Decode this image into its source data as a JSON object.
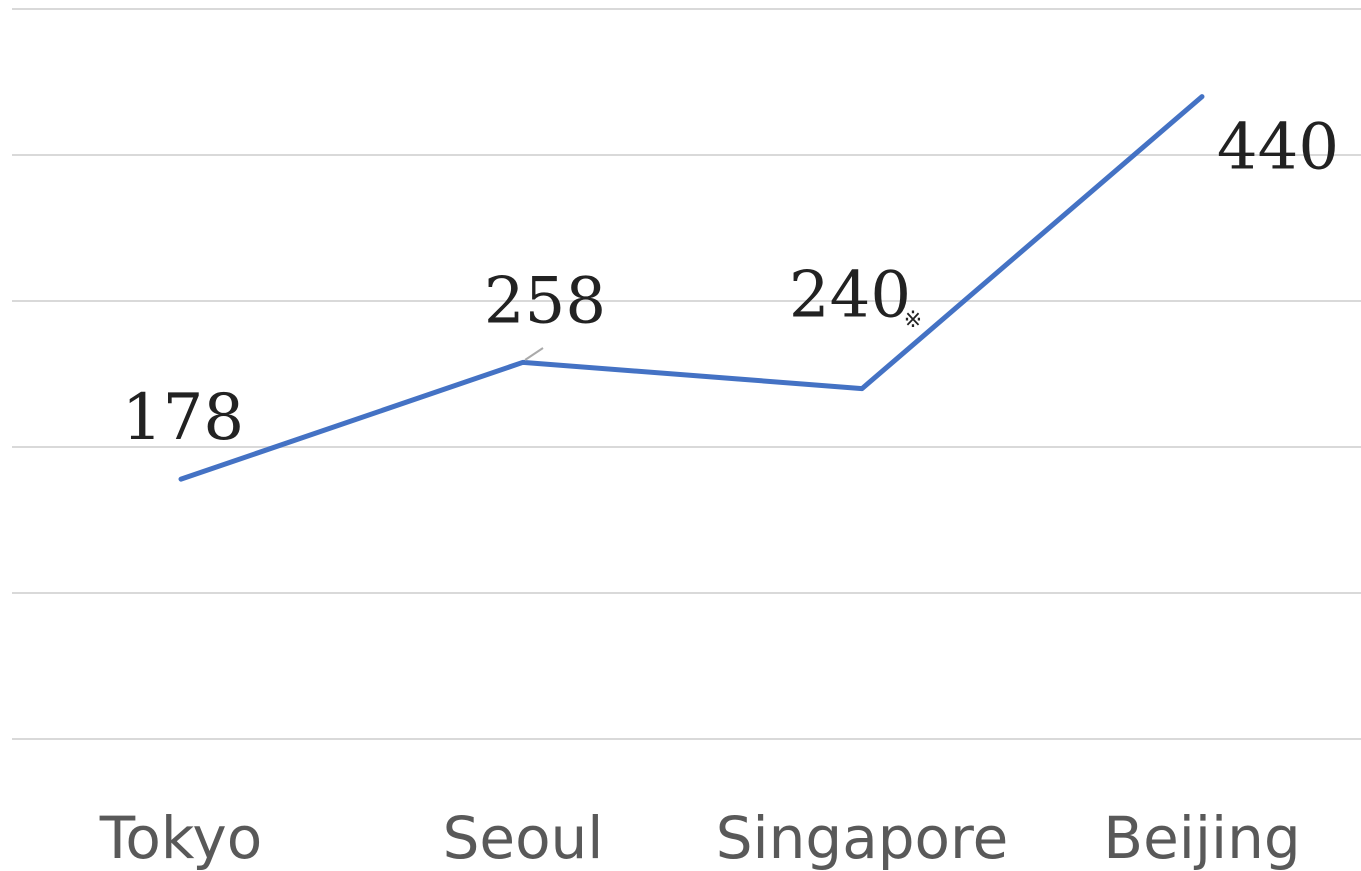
{
  "chart_data": {
    "type": "line",
    "categories": [
      "Tokyo",
      "Seoul",
      "Singapore",
      "Beijing"
    ],
    "series": [
      {
        "color": "#4472c4",
        "values": [
          178,
          258,
          240,
          440
        ]
      }
    ],
    "annotations": [
      {
        "text": "※"
      }
    ],
    "ylim": [
      0,
      500
    ],
    "yticks": [
      0,
      100,
      200,
      300,
      400,
      500
    ],
    "grid": true
  }
}
